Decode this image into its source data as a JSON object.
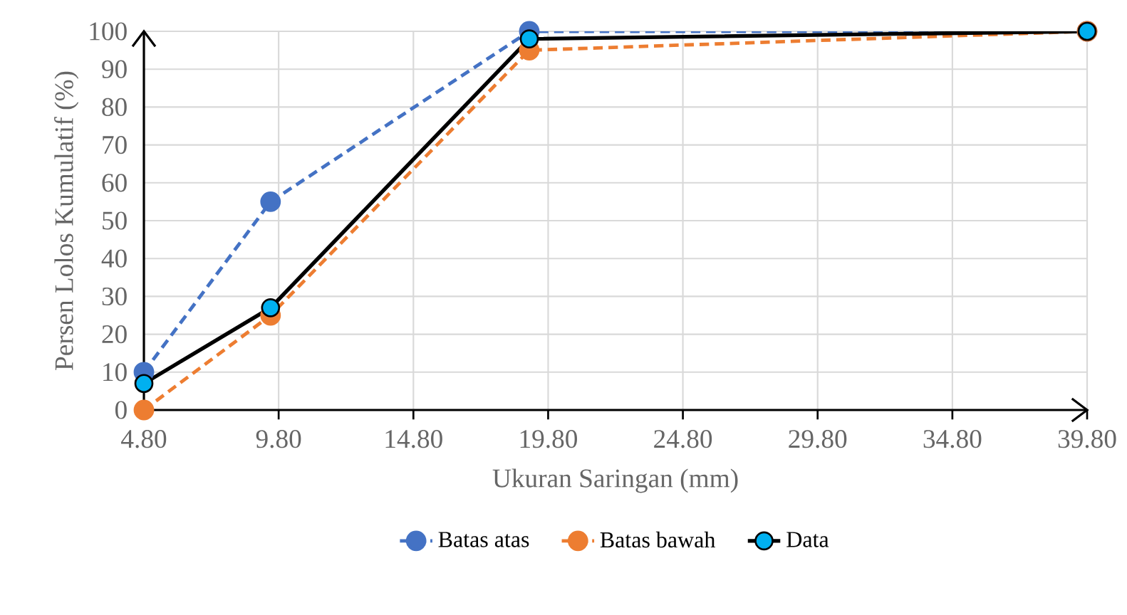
{
  "chart_data": {
    "type": "line",
    "xlabel": "Ukuran Saringan (mm)",
    "ylabel": "Persen Lolos Kumulatif (%)",
    "x": [
      4.8,
      9.5,
      19.1,
      39.8
    ],
    "series": [
      {
        "name": "Batas atas",
        "color": "#4472c4",
        "values": [
          10,
          55,
          100,
          100
        ],
        "line_style": "dashed"
      },
      {
        "name": "Batas bawah",
        "color": "#ed7d31",
        "values": [
          0,
          25,
          95,
          100
        ],
        "line_style": "dashed"
      },
      {
        "name": "Data",
        "color": "#000000",
        "values": [
          7,
          27,
          98,
          100
        ],
        "line_style": "solid"
      }
    ],
    "xlim": [
      4.8,
      39.8
    ],
    "xticks": [
      {
        "value": 4.8,
        "label": "4.80"
      },
      {
        "value": 9.8,
        "label": "9.80"
      },
      {
        "value": 14.8,
        "label": "14.80"
      },
      {
        "value": 19.8,
        "label": "19.80"
      },
      {
        "value": 24.8,
        "label": "24.80"
      },
      {
        "value": 29.8,
        "label": "29.80"
      },
      {
        "value": 34.8,
        "label": "34.80"
      },
      {
        "value": 39.8,
        "label": "39.80"
      }
    ],
    "ylim": [
      0,
      100
    ],
    "yticks": [
      0,
      10,
      20,
      30,
      40,
      50,
      60,
      70,
      80,
      90,
      100
    ],
    "grid": true,
    "legend": "bottom",
    "marker": "circle"
  }
}
